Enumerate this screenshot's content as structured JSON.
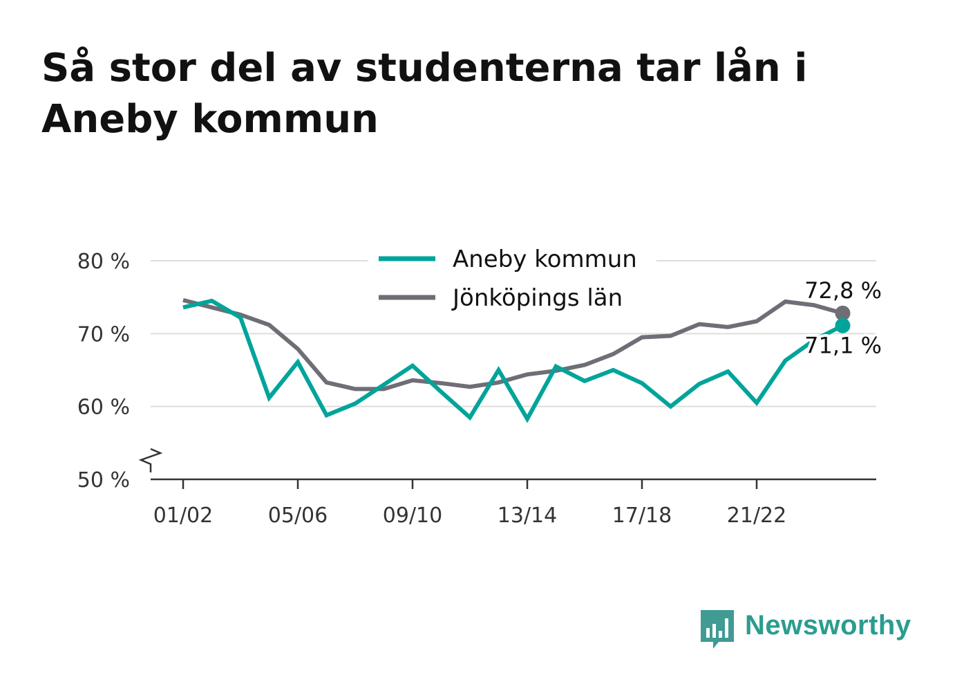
{
  "title": "Så stor del av studenterna tar lån i Aneby kommun",
  "brand": "Newsworthy",
  "colors": {
    "aneby": "#00a49a",
    "lan": "#6f6d75",
    "grid": "#dddddd",
    "axis": "#333333",
    "brand": "#2a9d8f"
  },
  "chart_data": {
    "type": "line",
    "title": "Så stor del av studenterna tar lån i Aneby kommun",
    "x": [
      "01/02",
      "02/03",
      "03/04",
      "04/05",
      "05/06",
      "06/07",
      "07/08",
      "08/09",
      "09/10",
      "10/11",
      "11/12",
      "12/13",
      "13/14",
      "14/15",
      "15/16",
      "16/17",
      "17/18",
      "18/19",
      "19/20",
      "20/21",
      "21/22",
      "22/23",
      "23/24",
      "24/25"
    ],
    "x_ticks": [
      "01/02",
      "05/06",
      "09/10",
      "13/14",
      "17/18",
      "21/22"
    ],
    "y_ticks": [
      50,
      60,
      70,
      80
    ],
    "y_tick_labels": [
      "50 %",
      "60 %",
      "70 %",
      "80 %"
    ],
    "ylim": [
      50,
      80
    ],
    "y_axis_break": true,
    "grid": true,
    "legend_position": "top-center",
    "series": [
      {
        "name": "Aneby kommun",
        "color": "#00a49a",
        "values": [
          73.6,
          74.5,
          72.2,
          61.2,
          66.1,
          58.8,
          60.4,
          63.0,
          65.6,
          62.0,
          58.5,
          65.0,
          58.3,
          65.5,
          63.5,
          65.0,
          63.2,
          60.0,
          63.1,
          64.8,
          60.5,
          66.3,
          69.1,
          71.1
        ],
        "end_label": "71,1 %"
      },
      {
        "name": "Jönköpings län",
        "color": "#6f6d75",
        "values": [
          74.6,
          73.6,
          72.6,
          71.2,
          67.9,
          63.3,
          62.4,
          62.4,
          63.6,
          63.2,
          62.7,
          63.3,
          64.4,
          64.9,
          65.7,
          67.2,
          69.5,
          69.7,
          71.3,
          70.9,
          71.7,
          74.4,
          73.9,
          72.8
        ],
        "end_label": "72,8 %"
      }
    ]
  }
}
